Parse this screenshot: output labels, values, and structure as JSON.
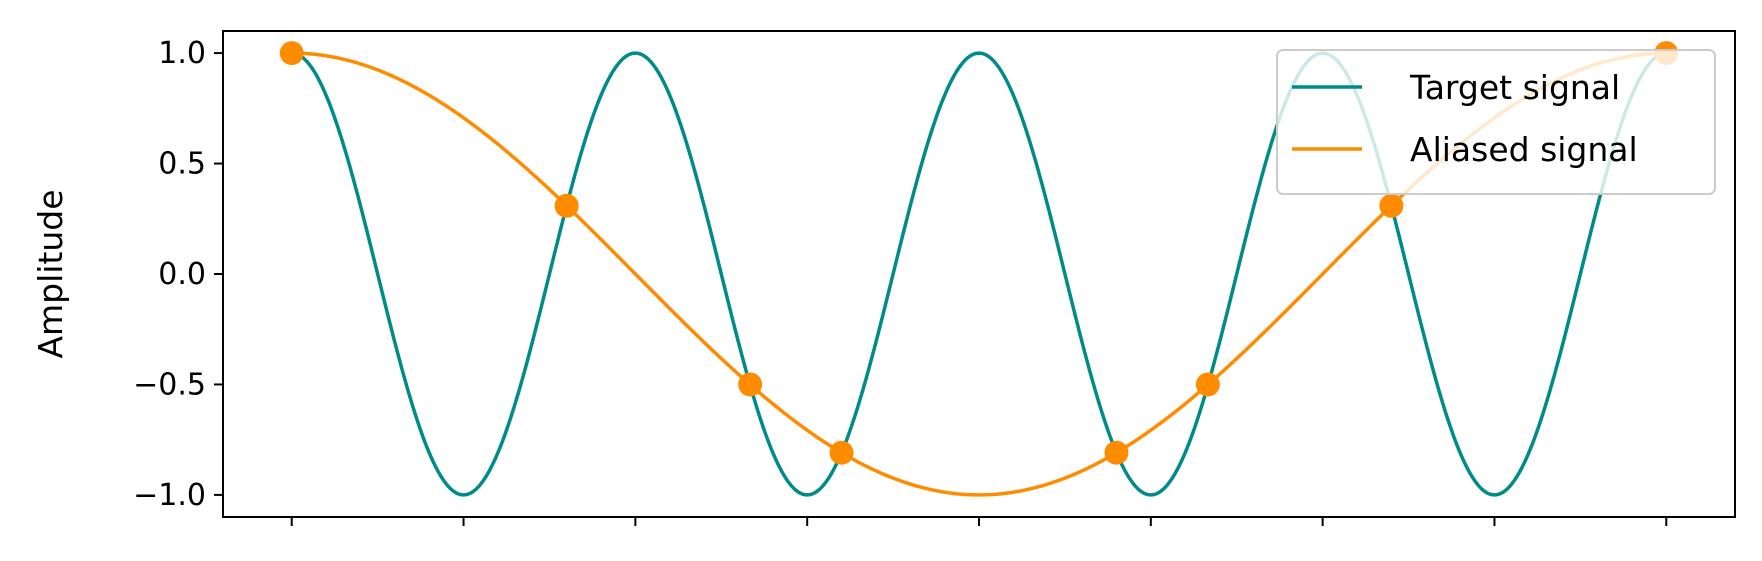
{
  "chart_data": {
    "type": "line",
    "title": "",
    "xlabel": "",
    "ylabel": "Amplitude",
    "xlim": [
      -0.1,
      2.1
    ],
    "ylim": [
      -1.1,
      1.1
    ],
    "x_ticks": [
      0,
      0.25,
      0.5,
      0.75,
      1.0,
      1.25,
      1.5,
      1.75,
      2.0
    ],
    "x_tick_labels_visible": false,
    "y_ticks": [
      -1.0,
      -0.5,
      0.0,
      0.5,
      1.0
    ],
    "y_tick_labels": [
      "−1.0",
      "−0.5",
      "0.0",
      "0.5",
      "1.0"
    ],
    "grid": false,
    "legend_position": "top-right",
    "series": [
      {
        "name": "Target signal",
        "color": "#008B8B",
        "kind": "line",
        "function": "cos(2*pi*2*x)",
        "x_range": [
          0,
          2
        ]
      },
      {
        "name": "Aliased signal",
        "color": "#FF8C00",
        "kind": "line",
        "function": "cos(2*pi*0.5*x)",
        "x_range": [
          0,
          2
        ]
      },
      {
        "name": "",
        "color": "#FF8C00",
        "kind": "markers",
        "points": [
          {
            "x": 0.0,
            "y": 1.0
          },
          {
            "x": 0.4,
            "y": 0.309
          },
          {
            "x": 0.667,
            "y": -0.5
          },
          {
            "x": 0.8,
            "y": -0.809
          },
          {
            "x": 1.2,
            "y": -0.809
          },
          {
            "x": 1.333,
            "y": -0.5
          },
          {
            "x": 1.6,
            "y": 0.309
          },
          {
            "x": 2.0,
            "y": 1.0
          }
        ]
      }
    ]
  }
}
